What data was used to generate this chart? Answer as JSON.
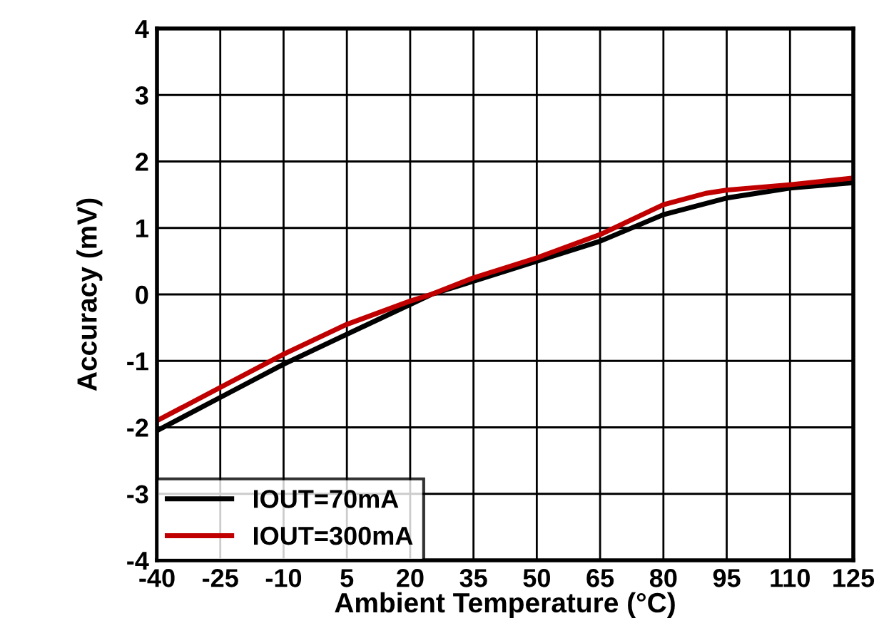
{
  "chart_data": {
    "type": "line",
    "xlabel": "Ambient Temperature (°C)",
    "ylabel": "Accuracy (mV)",
    "xlim": [
      -40,
      125
    ],
    "xticks": [
      -40,
      -25,
      -10,
      5,
      20,
      35,
      50,
      65,
      80,
      95,
      110,
      125
    ],
    "ylim": [
      -4,
      4
    ],
    "yticks": [
      -4,
      -3,
      -2,
      -1,
      0,
      1,
      2,
      3,
      4
    ],
    "grid": true,
    "legend": "bottom left",
    "line_style": "solid",
    "marker": "none",
    "series": [
      {
        "name": "IOUT=70mA",
        "color": "#000000",
        "x": [
          -40,
          -25,
          -10,
          5,
          20,
          25,
          35,
          50,
          65,
          80,
          95,
          110,
          125
        ],
        "values": [
          -2.05,
          -1.55,
          -1.05,
          -0.6,
          -0.15,
          0,
          0.2,
          0.5,
          0.8,
          1.2,
          1.45,
          1.6,
          1.68
        ]
      },
      {
        "name": "IOUT=300mA",
        "color": "#c00000",
        "x": [
          -40,
          -25,
          -10,
          5,
          20,
          25,
          35,
          50,
          65,
          80,
          90,
          95,
          110,
          125
        ],
        "values": [
          -1.9,
          -1.4,
          -0.9,
          -0.45,
          -0.1,
          0,
          0.25,
          0.55,
          0.9,
          1.35,
          1.52,
          1.57,
          1.65,
          1.75
        ]
      }
    ]
  }
}
